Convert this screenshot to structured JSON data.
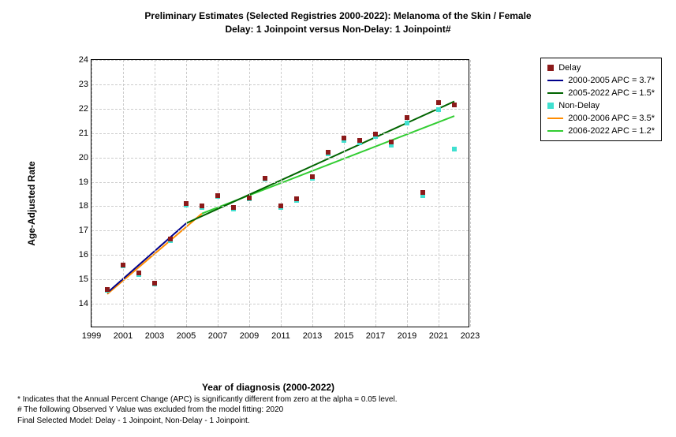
{
  "title_line1": "Preliminary Estimates (Selected Registries 2000-2022): Melanoma of the Skin / Female",
  "title_line2": "Delay: 1 Joinpoint  versus  Non-Delay: 1 Joinpoint#",
  "y_axis_label": "Age-Adjusted Rate",
  "x_axis_label": "Year of diagnosis (2000-2022)",
  "chart": {
    "type": "scatter-line",
    "xlim": [
      1999,
      2023
    ],
    "ylim": [
      13,
      24
    ],
    "x_ticks": [
      1999,
      2001,
      2003,
      2005,
      2007,
      2009,
      2011,
      2013,
      2015,
      2017,
      2019,
      2021,
      2023
    ],
    "y_ticks": [
      14,
      15,
      16,
      17,
      18,
      19,
      20,
      21,
      22,
      23,
      24
    ],
    "grid_color": "#cccccc",
    "background_color": "#ffffff",
    "title_fontsize": 12,
    "label_fontsize": 12,
    "tick_fontsize": 11,
    "delay_points": {
      "color": "#8b1a1a",
      "marker": "square",
      "marker_size": 6,
      "x": [
        2000,
        2001,
        2002,
        2003,
        2004,
        2005,
        2006,
        2007,
        2008,
        2009,
        2010,
        2011,
        2012,
        2013,
        2014,
        2015,
        2016,
        2017,
        2018,
        2019,
        2020,
        2021,
        2022
      ],
      "y": [
        14.6,
        15.6,
        15.25,
        14.85,
        16.65,
        18.1,
        18.0,
        18.45,
        17.95,
        18.35,
        19.15,
        18.0,
        18.3,
        19.2,
        20.2,
        20.8,
        20.7,
        20.95,
        20.65,
        21.65,
        18.55,
        22.25,
        22.15
      ]
    },
    "nondelay_points": {
      "color": "#40e0d0",
      "marker": "square",
      "marker_size": 6,
      "x": [
        2000,
        2001,
        2002,
        2003,
        2004,
        2005,
        2006,
        2007,
        2008,
        2009,
        2010,
        2011,
        2012,
        2013,
        2014,
        2015,
        2016,
        2017,
        2018,
        2019,
        2020,
        2021,
        2022
      ],
      "y": [
        14.55,
        15.55,
        15.2,
        14.8,
        16.6,
        18.05,
        17.95,
        18.4,
        17.9,
        18.3,
        19.1,
        17.95,
        18.25,
        19.15,
        20.15,
        20.7,
        20.6,
        20.85,
        20.5,
        21.4,
        18.45,
        21.95,
        20.35
      ]
    },
    "delay_seg1": {
      "color": "#00008b",
      "width": 2,
      "x": [
        2000,
        2005
      ],
      "y": [
        14.45,
        17.3
      ]
    },
    "delay_seg2": {
      "color": "#006400",
      "width": 2,
      "x": [
        2005,
        2022
      ],
      "y": [
        17.3,
        22.3
      ]
    },
    "nondelay_seg1": {
      "color": "#ff8c00",
      "width": 2,
      "x": [
        2000,
        2006
      ],
      "y": [
        14.4,
        17.7
      ]
    },
    "nondelay_seg2": {
      "color": "#32cd32",
      "width": 2,
      "x": [
        2006,
        2022
      ],
      "y": [
        17.7,
        21.7
      ]
    }
  },
  "legend": {
    "items": [
      {
        "type": "sq",
        "color": "#8b1a1a",
        "label": "Delay"
      },
      {
        "type": "line",
        "color": "#00008b",
        "label": "2000-2005 APC  = 3.7*"
      },
      {
        "type": "line",
        "color": "#006400",
        "label": "2005-2022 APC  = 1.5*"
      },
      {
        "type": "sq",
        "color": "#40e0d0",
        "label": "Non-Delay"
      },
      {
        "type": "line",
        "color": "#ff8c00",
        "label": "2000-2006 APC  = 3.5*"
      },
      {
        "type": "line",
        "color": "#32cd32",
        "label": "2006-2022 APC  = 1.2*"
      }
    ]
  },
  "footnotes": {
    "line1": "* Indicates that the Annual Percent Change (APC) is significantly different from zero at the alpha = 0.05 level.",
    "line2": " # The following Observed Y Value was excluded from the model fitting:  2020",
    "line3": "Final Selected Model: Delay - 1 Joinpoint, Non-Delay - 1 Joinpoint."
  }
}
